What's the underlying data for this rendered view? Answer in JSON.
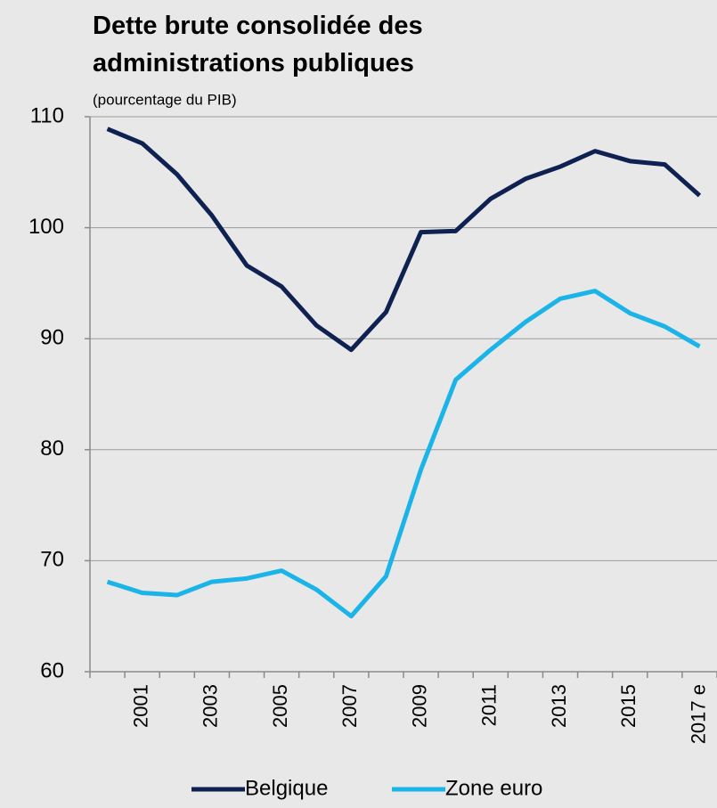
{
  "chart_data": {
    "type": "line",
    "title": "Dette brute consolidée des administrations publiques",
    "subtitle": "(pourcentage du PIB)",
    "categories": [
      null,
      "2001",
      null,
      "2003",
      null,
      "2005",
      null,
      "2007",
      null,
      "2009",
      null,
      "2011",
      null,
      "2013",
      null,
      "2015",
      null,
      "2017 e"
    ],
    "series": [
      {
        "name": "Belgique",
        "color": "#0f2150",
        "values": [
          108.9,
          107.6,
          104.8,
          101.1,
          96.6,
          94.7,
          91.2,
          89.0,
          92.4,
          99.6,
          99.7,
          102.6,
          104.4,
          105.5,
          106.9,
          106.0,
          105.7,
          102.9
        ]
      },
      {
        "name": "Zone euro",
        "color": "#1ab4e8",
        "values": [
          68.1,
          67.1,
          66.9,
          68.1,
          68.4,
          69.1,
          67.4,
          65.0,
          68.6,
          78.2,
          86.3,
          89.0,
          91.5,
          93.6,
          94.3,
          92.3,
          91.1,
          89.3
        ]
      }
    ],
    "ylim": [
      60,
      110
    ],
    "yticks": [
      60,
      70,
      80,
      90,
      100,
      110
    ],
    "grid": true
  }
}
